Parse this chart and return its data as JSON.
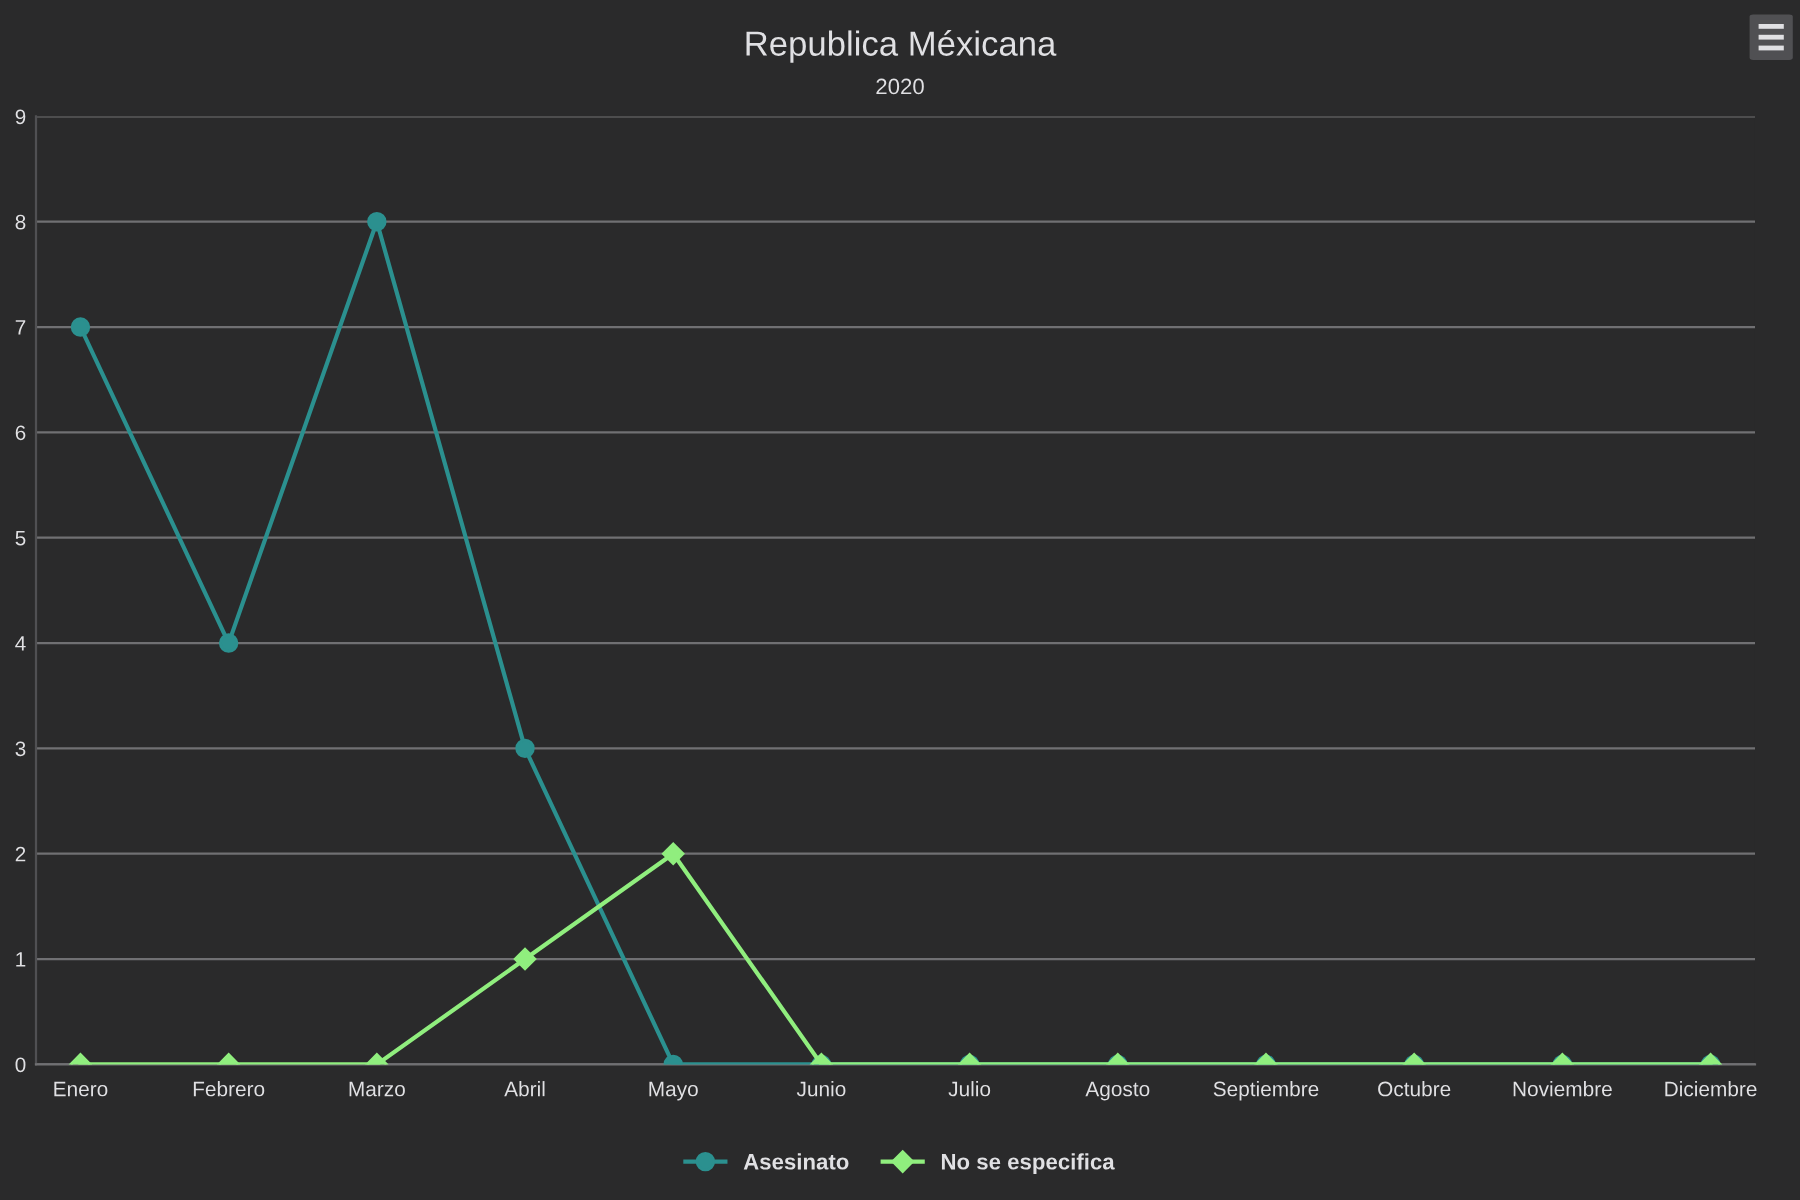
{
  "chart_data": {
    "type": "line",
    "title": "Republica Méxicana",
    "subtitle": "2020",
    "categories": [
      "Enero",
      "Febrero",
      "Marzo",
      "Abril",
      "Mayo",
      "Junio",
      "Julio",
      "Agosto",
      "Septiembre",
      "Octubre",
      "Noviembre",
      "Diciembre"
    ],
    "series": [
      {
        "name": "Asesinato",
        "color": "#2b908f",
        "marker": "circle",
        "values": [
          7,
          4,
          8,
          3,
          0,
          0,
          0,
          0,
          0,
          0,
          0,
          0
        ]
      },
      {
        "name": "No se especifica",
        "color": "#90ee7e",
        "marker": "diamond",
        "values": [
          0,
          0,
          0,
          1,
          2,
          0,
          0,
          0,
          0,
          0,
          0,
          0
        ]
      }
    ],
    "ylim": [
      0,
      9
    ],
    "yticks": [
      0,
      1,
      2,
      3,
      4,
      5,
      6,
      7,
      8,
      9
    ],
    "grid": "y",
    "legend": "bottom",
    "line_style": "solid"
  }
}
